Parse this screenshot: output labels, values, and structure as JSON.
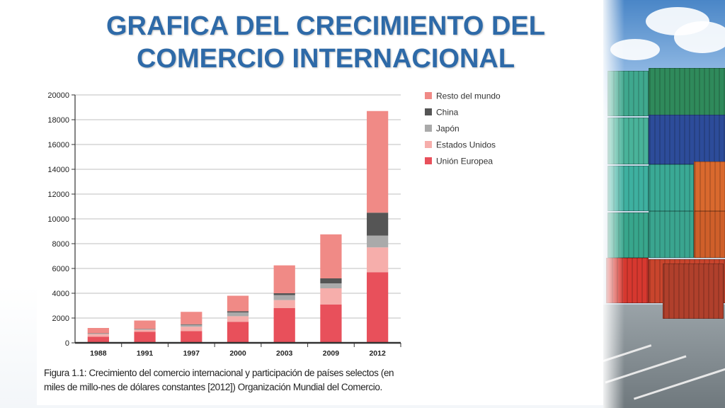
{
  "slide": {
    "title": "GRAFICA DEL CRECIMIENTO DEL COMERCIO INTERNACIONAL",
    "caption": "Figura 1.1: Crecimiento del comercio internacional y participación de países selectos (en miles de millo-nes de dólares constantes [2012]) Organización Mundial del Comercio."
  },
  "chart_data": {
    "type": "bar",
    "stacked": true,
    "title": "",
    "xlabel": "",
    "ylabel": "",
    "ylim": [
      0,
      20000
    ],
    "yticks": [
      0,
      2000,
      4000,
      6000,
      8000,
      10000,
      12000,
      14000,
      16000,
      18000,
      20000
    ],
    "categories": [
      "1988",
      "1991",
      "1997",
      "2000",
      "2003",
      "2009",
      "2012"
    ],
    "series": [
      {
        "name": "Unión Europea",
        "color": "#e8505b",
        "values": [
          500,
          900,
          950,
          1700,
          2800,
          3100,
          5700
        ]
      },
      {
        "name": "Estados Unidos",
        "color": "#f6aeab",
        "values": [
          200,
          150,
          350,
          450,
          650,
          1300,
          2000
        ]
      },
      {
        "name": "Japón",
        "color": "#aaaaaa",
        "values": [
          50,
          50,
          150,
          300,
          400,
          400,
          950
        ]
      },
      {
        "name": "China",
        "color": "#555555",
        "values": [
          20,
          30,
          50,
          100,
          150,
          400,
          1850
        ]
      },
      {
        "name": "Resto del mundo",
        "color": "#f08a86",
        "values": [
          430,
          670,
          1000,
          1250,
          2250,
          3550,
          8200
        ]
      }
    ],
    "legend_order": [
      "Resto del mundo",
      "China",
      "Japón",
      "Estados Unidos",
      "Unión Europea"
    ],
    "legend_position": "right",
    "grid": true
  }
}
